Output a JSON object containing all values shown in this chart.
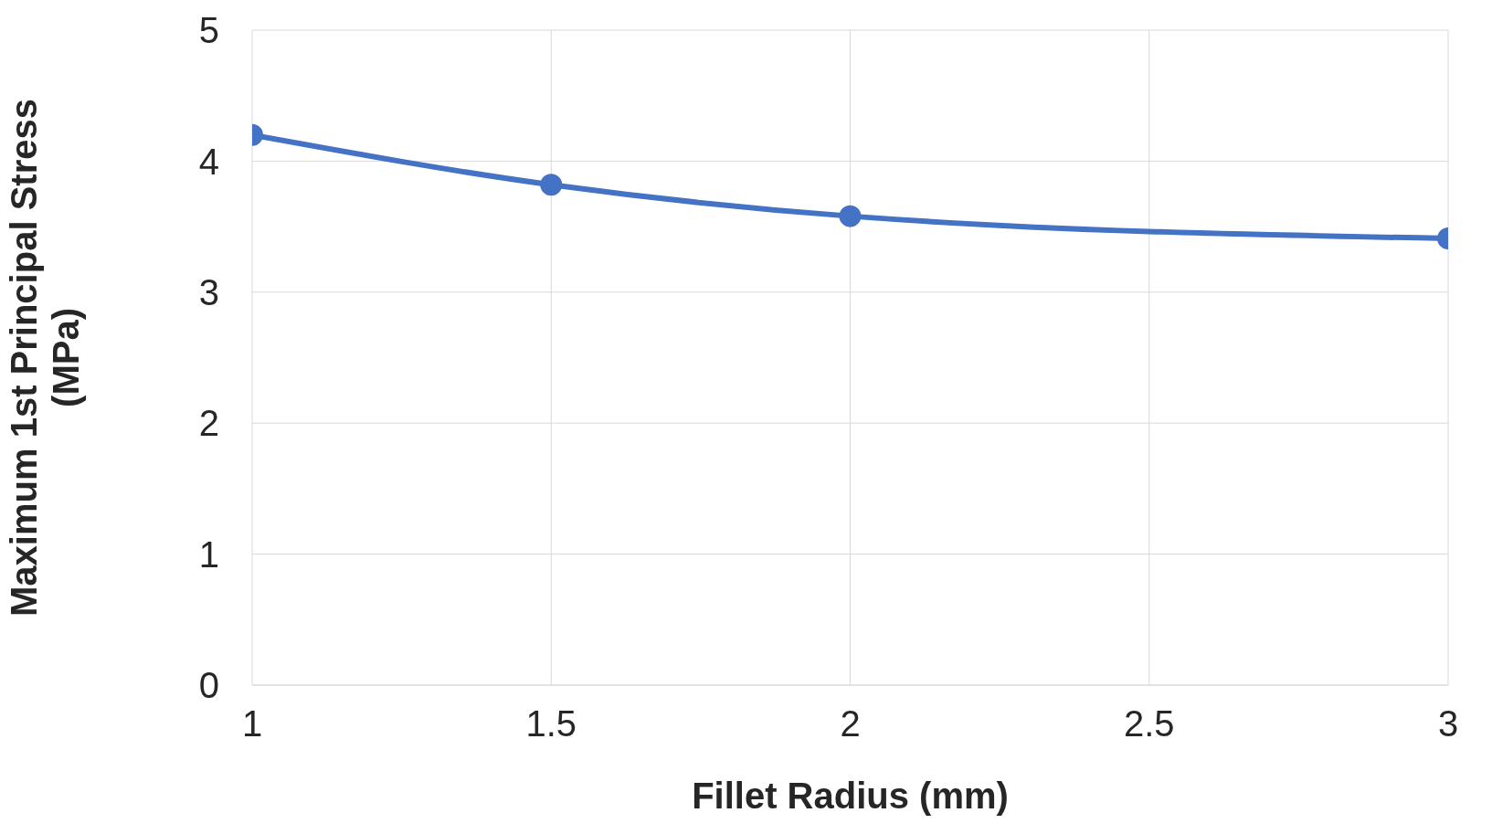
{
  "chart_data": {
    "type": "line",
    "xlabel": "Fillet Radius (mm)",
    "ylabel": "Maximum 1st Principal Stress (MPa)",
    "x": [
      1,
      1.5,
      2,
      3
    ],
    "series": [
      {
        "color": "#4472c4",
        "values": [
          4.2,
          3.82,
          3.58,
          3.41
        ]
      }
    ],
    "xlim": [
      1,
      3
    ],
    "xticks": [
      1,
      1.5,
      2,
      2.5,
      3
    ],
    "ylim": [
      0,
      5
    ],
    "yticks": [
      0,
      1,
      2,
      3,
      4,
      5
    ],
    "grid": true,
    "marker": "circle",
    "line_style": "solid",
    "legend": false
  }
}
